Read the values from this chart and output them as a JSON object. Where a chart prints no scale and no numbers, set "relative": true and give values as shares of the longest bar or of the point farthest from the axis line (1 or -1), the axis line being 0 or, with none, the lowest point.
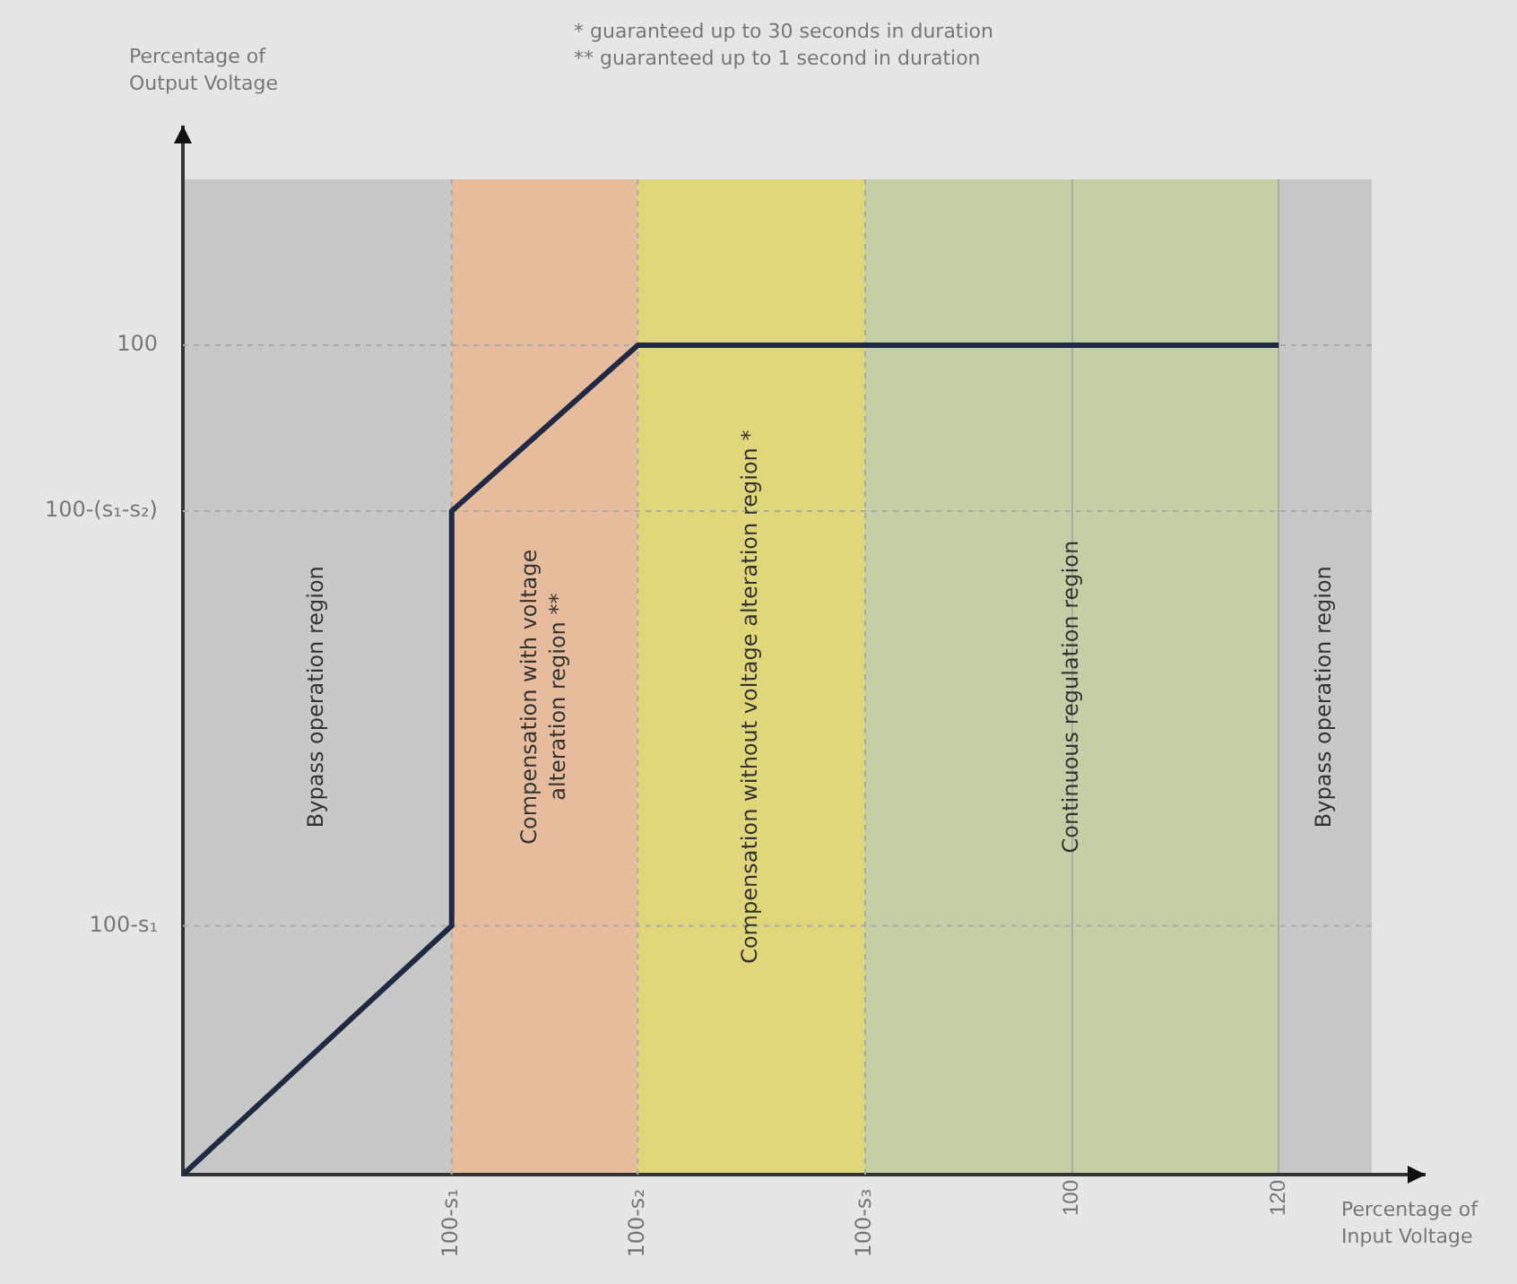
{
  "chart_data": {
    "type": "line",
    "relative": true,
    "xlabel": "Percentage of Input Voltage",
    "annotations": [
      "Percentage of Output Voltage",
      "* guaranteed up to 30 seconds in duration",
      "** guaranteed up to 1 second in duration"
    ],
    "x": [
      14,
      40,
      40,
      58,
      120
    ],
    "series": [
      {
        "color": "#1f2a44",
        "values": [
          0,
          0.3,
          0.8,
          1,
          1
        ]
      }
    ],
    "xlim": [
      14,
      129
    ],
    "xticks": [
      100,
      120
    ],
    "ref_lines": [
      {
        "axis": "x",
        "value": 40,
        "label": "100-s₁"
      },
      {
        "axis": "x",
        "value": 58,
        "label": "100-s₂"
      },
      {
        "axis": "x",
        "value": 80,
        "label": "100-s₃"
      },
      {
        "axis": "y",
        "value": 0.3,
        "label": "100-s₁"
      },
      {
        "axis": "y",
        "value": 0.8,
        "label": "100-(s₁-s₂)"
      },
      {
        "axis": "y",
        "value": 1,
        "label": "100"
      }
    ],
    "bands": [
      {
        "axis": "x",
        "from": 14,
        "to": 40,
        "label": "Bypass operation region",
        "color": "#c8c8c8"
      },
      {
        "axis": "x",
        "from": 40,
        "to": 58,
        "label": "Compensation with voltage alteration region **",
        "color": "#e6bc9c"
      },
      {
        "axis": "x",
        "from": 58,
        "to": 80,
        "label": "Compensation without voltage alteration region *",
        "color": "#e0d77a"
      },
      {
        "axis": "x",
        "from": 80,
        "to": 120,
        "label": "Continuous regulation region",
        "color": "#c4cfa6"
      },
      {
        "axis": "x",
        "from": 120,
        "to": 129,
        "label": "Bypass operation region",
        "color": "#c8c8c8"
      }
    ],
    "grid": "x",
    "legend": false,
    "marker": "none",
    "line_style": "solid"
  }
}
